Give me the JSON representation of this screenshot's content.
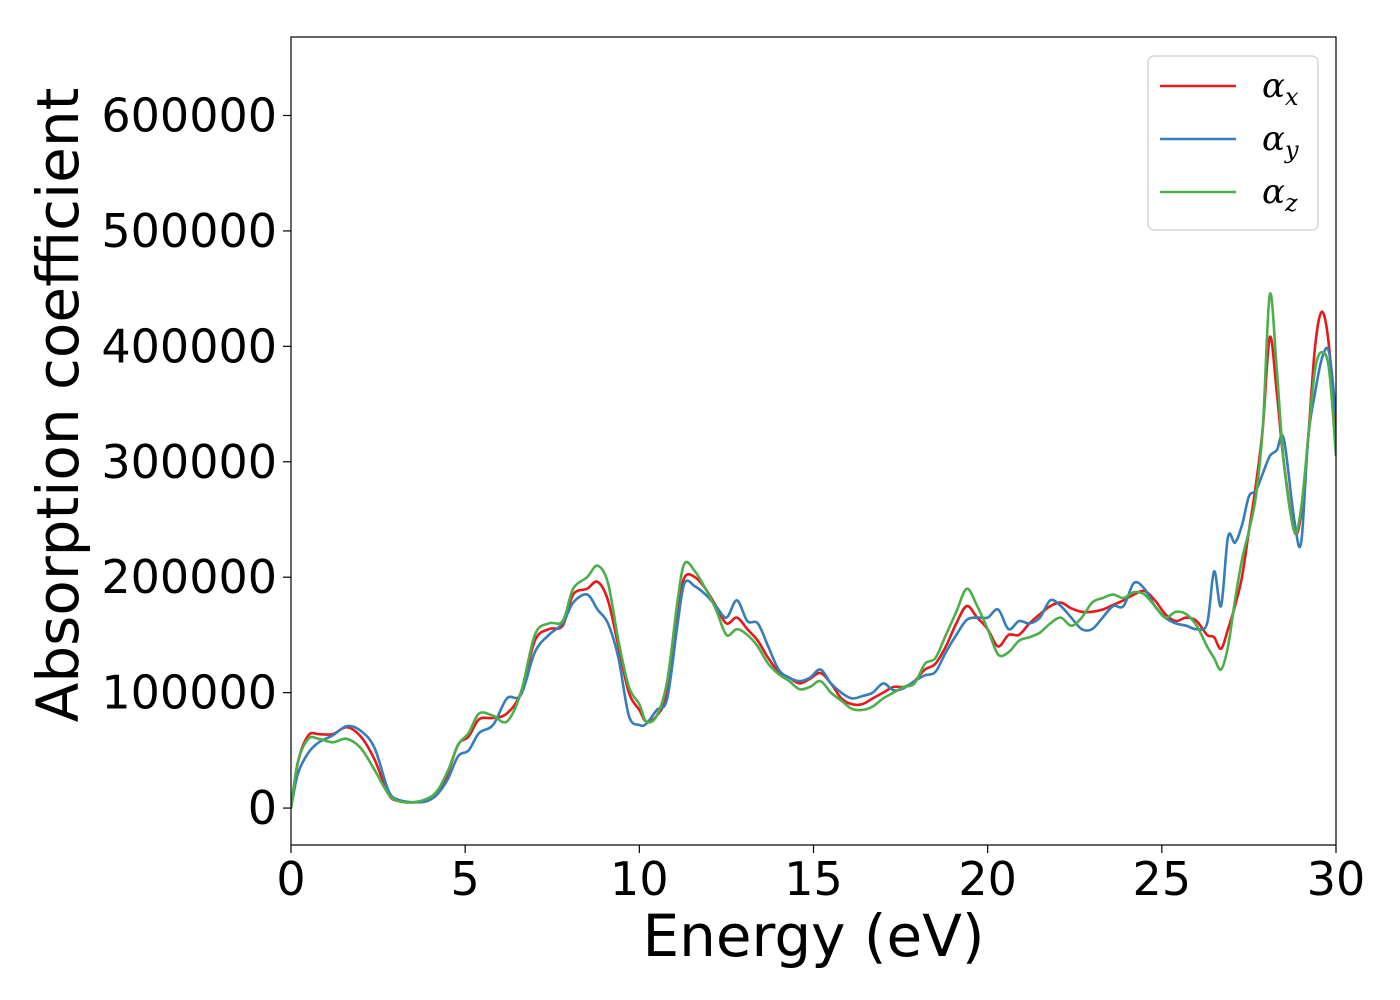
{
  "chart_data": {
    "type": "line",
    "xlabel": "Energy (eV)",
    "ylabel": "Absorption coefficient",
    "xlim": [
      0,
      30
    ],
    "ylim": [
      -32000,
      668000
    ],
    "xticks": [
      0,
      5,
      10,
      15,
      20,
      25,
      30
    ],
    "xtick_labels": [
      "0",
      "5",
      "10",
      "15",
      "20",
      "25",
      "30"
    ],
    "yticks": [
      0,
      100000,
      200000,
      300000,
      400000,
      500000,
      600000
    ],
    "ytick_labels": [
      "0",
      "100000",
      "200000",
      "300000",
      "400000",
      "500000",
      "600000"
    ],
    "grid": false,
    "legend_position": "top-right",
    "series": [
      {
        "name": "αx",
        "name_base": "α",
        "name_sub": "x",
        "color": "#e41a1c",
        "x": [
          0,
          0.2,
          0.5,
          0.8,
          1.2,
          1.6,
          2.0,
          2.4,
          2.8,
          3.1,
          3.5,
          3.9,
          4.2,
          4.5,
          4.8,
          5.1,
          5.4,
          5.8,
          6.2,
          6.6,
          7.0,
          7.4,
          7.8,
          8.1,
          8.5,
          8.8,
          9.1,
          9.4,
          9.7,
          10.0,
          10.2,
          10.5,
          10.8,
          11.1,
          11.3,
          11.6,
          11.9,
          12.2,
          12.5,
          12.8,
          13.1,
          13.4,
          13.7,
          14.0,
          14.3,
          14.6,
          14.9,
          15.2,
          15.5,
          15.8,
          16.1,
          16.4,
          16.7,
          17.0,
          17.3,
          17.6,
          17.9,
          18.2,
          18.5,
          18.8,
          19.1,
          19.4,
          19.7,
          20.0,
          20.3,
          20.6,
          20.9,
          21.2,
          21.5,
          21.8,
          22.1,
          22.4,
          22.7,
          23.0,
          23.3,
          23.6,
          23.9,
          24.2,
          24.5,
          24.8,
          25.1,
          25.4,
          25.7,
          26.0,
          26.3,
          26.5,
          26.7,
          26.9,
          27.1,
          27.3,
          27.5,
          27.7,
          27.9,
          28.1,
          28.3,
          28.5,
          28.8,
          29.0,
          29.2,
          29.4,
          29.6,
          29.8,
          30.0
        ],
        "y": [
          0,
          40000,
          63000,
          64000,
          64000,
          70000,
          62000,
          42000,
          12000,
          6000,
          5000,
          7000,
          12000,
          30000,
          55000,
          62000,
          77000,
          78000,
          82000,
          100000,
          145000,
          155000,
          158000,
          185000,
          190000,
          196000,
          180000,
          140000,
          100000,
          85000,
          75000,
          80000,
          100000,
          170000,
          200000,
          200000,
          190000,
          175000,
          160000,
          165000,
          155000,
          145000,
          130000,
          118000,
          113000,
          108000,
          112000,
          117000,
          108000,
          95000,
          90000,
          90000,
          95000,
          100000,
          105000,
          105000,
          110000,
          120000,
          125000,
          140000,
          160000,
          175000,
          165000,
          155000,
          140000,
          150000,
          150000,
          160000,
          168000,
          175000,
          178000,
          173000,
          170000,
          170000,
          172000,
          176000,
          180000,
          185000,
          188000,
          180000,
          168000,
          162000,
          165000,
          162000,
          150000,
          148000,
          138000,
          155000,
          175000,
          200000,
          240000,
          280000,
          330000,
          408000,
          360000,
          300000,
          240000,
          255000,
          320000,
          400000,
          430000,
          400000,
          320000
        ]
      },
      {
        "name": "αy",
        "name_base": "α",
        "name_sub": "y",
        "color": "#377eb8",
        "x": [
          0,
          0.2,
          0.5,
          0.8,
          1.2,
          1.6,
          2.0,
          2.4,
          2.8,
          3.1,
          3.5,
          3.9,
          4.2,
          4.5,
          4.8,
          5.1,
          5.4,
          5.8,
          6.2,
          6.6,
          7.0,
          7.4,
          7.8,
          8.1,
          8.5,
          8.8,
          9.1,
          9.4,
          9.7,
          10.0,
          10.2,
          10.5,
          10.8,
          11.1,
          11.3,
          11.6,
          11.9,
          12.2,
          12.5,
          12.8,
          13.1,
          13.4,
          13.7,
          14.0,
          14.3,
          14.6,
          14.9,
          15.2,
          15.5,
          15.8,
          16.1,
          16.4,
          16.7,
          17.0,
          17.3,
          17.6,
          17.9,
          18.2,
          18.5,
          18.8,
          19.1,
          19.4,
          19.7,
          20.0,
          20.3,
          20.6,
          20.9,
          21.2,
          21.5,
          21.8,
          22.1,
          22.4,
          22.7,
          23.0,
          23.3,
          23.6,
          23.9,
          24.2,
          24.5,
          24.8,
          25.1,
          25.4,
          25.7,
          26.0,
          26.3,
          26.5,
          26.7,
          26.9,
          27.1,
          27.3,
          27.5,
          27.7,
          27.9,
          28.1,
          28.3,
          28.5,
          28.8,
          29.0,
          29.2,
          29.4,
          29.6,
          29.8,
          30.0
        ],
        "y": [
          0,
          30000,
          48000,
          57000,
          63000,
          71000,
          67000,
          52000,
          15000,
          7000,
          5000,
          6000,
          12000,
          25000,
          45000,
          50000,
          65000,
          72000,
          95000,
          98000,
          135000,
          150000,
          160000,
          178000,
          185000,
          172000,
          160000,
          130000,
          80000,
          72000,
          73000,
          85000,
          95000,
          160000,
          195000,
          192000,
          185000,
          175000,
          165000,
          180000,
          162000,
          160000,
          140000,
          120000,
          113000,
          110000,
          113000,
          120000,
          108000,
          100000,
          95000,
          97000,
          100000,
          108000,
          102000,
          104000,
          110000,
          115000,
          118000,
          135000,
          150000,
          163000,
          165000,
          165000,
          172000,
          155000,
          162000,
          160000,
          165000,
          180000,
          175000,
          165000,
          155000,
          155000,
          165000,
          175000,
          175000,
          195000,
          190000,
          175000,
          165000,
          160000,
          158000,
          155000,
          160000,
          205000,
          175000,
          235000,
          230000,
          245000,
          270000,
          275000,
          290000,
          305000,
          310000,
          320000,
          250000,
          230000,
          320000,
          360000,
          390000,
          395000,
          340000
        ]
      },
      {
        "name": "αz",
        "name_base": "α",
        "name_sub": "z",
        "color": "#4daf4a",
        "x": [
          0,
          0.2,
          0.5,
          0.8,
          1.2,
          1.6,
          2.0,
          2.4,
          2.8,
          3.1,
          3.5,
          3.9,
          4.2,
          4.5,
          4.8,
          5.1,
          5.4,
          5.8,
          6.2,
          6.6,
          7.0,
          7.4,
          7.8,
          8.1,
          8.5,
          8.8,
          9.1,
          9.4,
          9.7,
          10.0,
          10.2,
          10.5,
          10.8,
          11.1,
          11.3,
          11.6,
          11.9,
          12.2,
          12.5,
          12.8,
          13.1,
          13.4,
          13.7,
          14.0,
          14.3,
          14.6,
          14.9,
          15.2,
          15.5,
          15.8,
          16.1,
          16.4,
          16.7,
          17.0,
          17.3,
          17.6,
          17.9,
          18.2,
          18.5,
          18.8,
          19.1,
          19.4,
          19.7,
          20.0,
          20.3,
          20.6,
          20.9,
          21.2,
          21.5,
          21.8,
          22.1,
          22.4,
          22.7,
          23.0,
          23.3,
          23.6,
          23.9,
          24.2,
          24.5,
          24.8,
          25.1,
          25.4,
          25.7,
          26.0,
          26.3,
          26.5,
          26.7,
          26.9,
          27.1,
          27.3,
          27.5,
          27.7,
          27.9,
          28.1,
          28.3,
          28.5,
          28.8,
          29.0,
          29.2,
          29.4,
          29.6,
          29.8,
          30.0
        ],
        "y": [
          0,
          40000,
          60000,
          60000,
          57000,
          60000,
          52000,
          33000,
          12000,
          6000,
          5000,
          8000,
          15000,
          32000,
          55000,
          65000,
          82000,
          80000,
          75000,
          100000,
          150000,
          160000,
          162000,
          190000,
          200000,
          210000,
          195000,
          145000,
          105000,
          90000,
          75000,
          80000,
          110000,
          180000,
          212000,
          205000,
          190000,
          172000,
          150000,
          155000,
          150000,
          140000,
          125000,
          116000,
          110000,
          103000,
          105000,
          110000,
          100000,
          93000,
          86000,
          85000,
          88000,
          95000,
          100000,
          105000,
          108000,
          125000,
          130000,
          150000,
          170000,
          190000,
          175000,
          155000,
          133000,
          135000,
          145000,
          148000,
          152000,
          160000,
          165000,
          158000,
          165000,
          178000,
          182000,
          185000,
          182000,
          187000,
          185000,
          175000,
          165000,
          170000,
          168000,
          158000,
          140000,
          130000,
          120000,
          140000,
          180000,
          215000,
          240000,
          270000,
          330000,
          445000,
          380000,
          300000,
          240000,
          260000,
          320000,
          380000,
          395000,
          380000,
          305000
        ]
      }
    ]
  }
}
